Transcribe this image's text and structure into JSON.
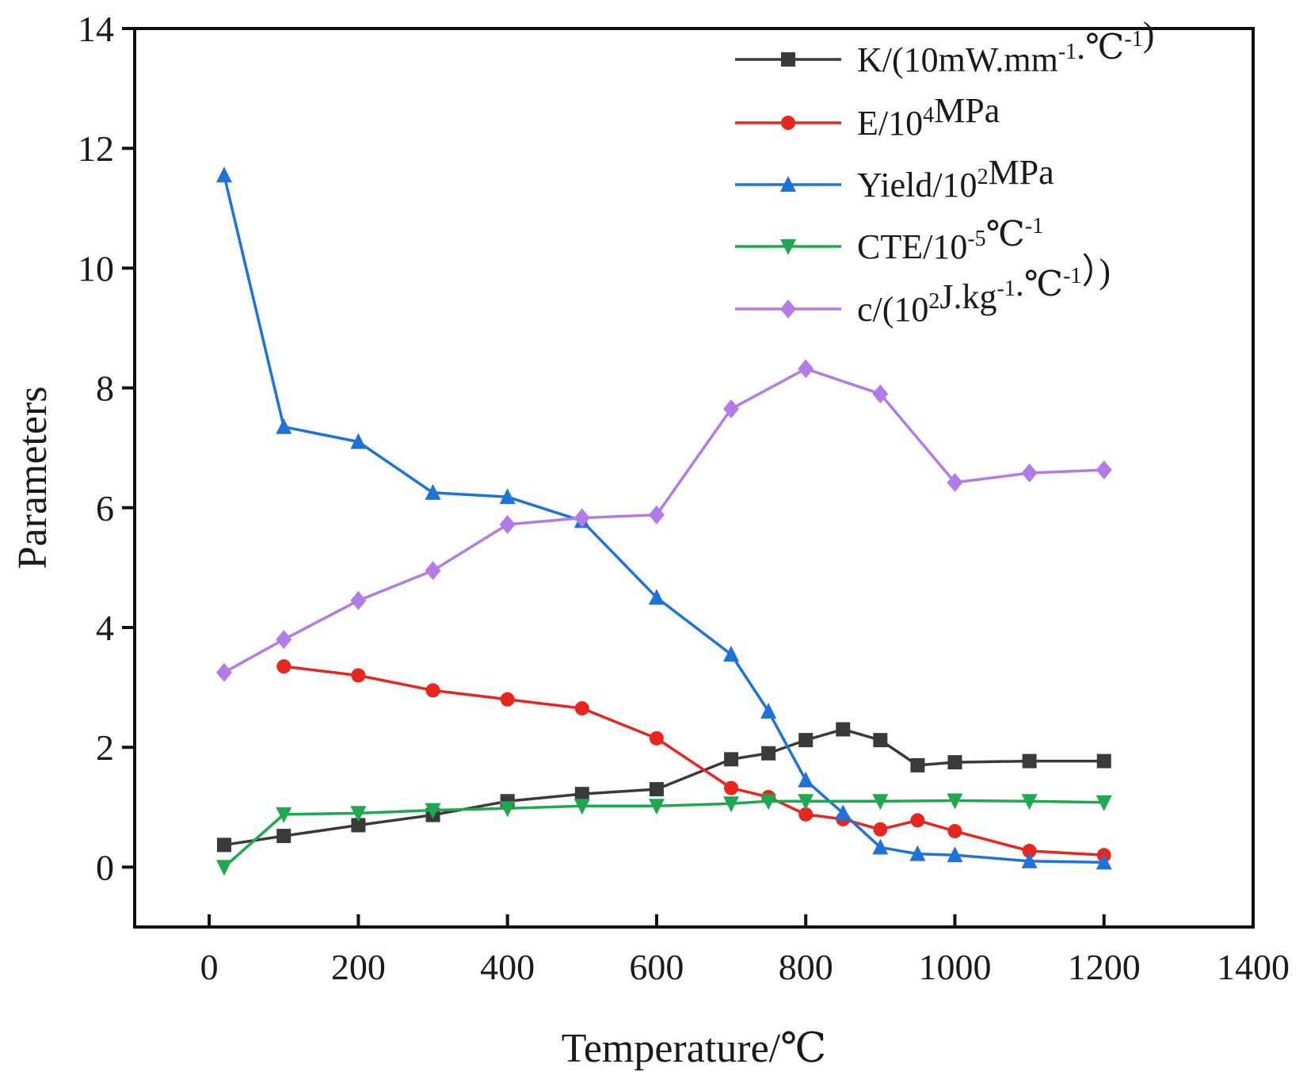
{
  "chart_data": {
    "type": "line",
    "xlabel": "Temperature/℃",
    "ylabel": "Parameters",
    "xlim": [
      -100,
      1400
    ],
    "ylim": [
      -1,
      14
    ],
    "x_ticks": [
      0,
      200,
      400,
      600,
      800,
      1000,
      1200,
      1400
    ],
    "y_ticks": [
      0,
      2,
      4,
      6,
      8,
      10,
      12,
      14
    ],
    "grid": false,
    "legend_position": "top-right",
    "series": [
      {
        "name": "K/(10mW.mm-1.℃-1)",
        "color": "#3a3a3a",
        "marker": "square",
        "x": [
          20,
          100,
          200,
          300,
          400,
          500,
          600,
          700,
          750,
          800,
          850,
          900,
          950,
          1000,
          1100,
          1200
        ],
        "y": [
          0.37,
          0.52,
          0.7,
          0.87,
          1.1,
          1.22,
          1.3,
          1.8,
          1.9,
          2.12,
          2.3,
          2.12,
          1.7,
          1.75,
          1.77,
          1.77
        ]
      },
      {
        "name": "E/104MPa",
        "color": "#e8261f",
        "marker": "circle",
        "x": [
          100,
          200,
          300,
          400,
          500,
          600,
          700,
          750,
          800,
          850,
          900,
          950,
          1000,
          1100,
          1200
        ],
        "y": [
          3.35,
          3.2,
          2.95,
          2.8,
          2.65,
          2.15,
          1.32,
          1.17,
          0.88,
          0.8,
          0.63,
          0.78,
          0.6,
          0.27,
          0.2
        ]
      },
      {
        "name": "Yield/102MPa",
        "color": "#1e73d8",
        "marker": "triangle-up",
        "x": [
          20,
          100,
          200,
          300,
          400,
          500,
          600,
          700,
          750,
          800,
          850,
          900,
          950,
          1000,
          1100,
          1200
        ],
        "y": [
          11.55,
          7.35,
          7.1,
          6.25,
          6.18,
          5.78,
          4.5,
          3.55,
          2.6,
          1.45,
          0.9,
          0.33,
          0.22,
          0.2,
          0.1,
          0.08
        ]
      },
      {
        "name": "CTE/10-5℃-1",
        "color": "#1fa84f",
        "marker": "triangle-down",
        "x": [
          20,
          100,
          200,
          300,
          400,
          500,
          600,
          700,
          750,
          800,
          900,
          1000,
          1100,
          1200
        ],
        "y": [
          0.0,
          0.88,
          0.9,
          0.95,
          0.98,
          1.02,
          1.02,
          1.06,
          1.1,
          1.1,
          1.1,
          1.11,
          1.1,
          1.08
        ]
      },
      {
        "name": "c/(102J.kg-1.℃-1）)",
        "color": "#b27be8",
        "marker": "diamond",
        "x": [
          20,
          100,
          200,
          300,
          400,
          500,
          600,
          700,
          800,
          900,
          1000,
          1100,
          1200
        ],
        "y": [
          3.25,
          3.8,
          4.45,
          4.95,
          5.72,
          5.83,
          5.88,
          7.65,
          8.32,
          7.9,
          6.42,
          6.58,
          6.63
        ]
      }
    ],
    "legend_labels": [
      {
        "base": "K/(10mW.mm",
        "sup1": "-1",
        "mid": ".℃",
        "sup2": "-1",
        "tail": ")"
      },
      {
        "base": "E/10",
        "sup1": "4",
        "mid": "MPa",
        "sup2": "",
        "tail": ""
      },
      {
        "base": "Yield/10",
        "sup1": "2",
        "mid": "MPa",
        "sup2": "",
        "tail": ""
      },
      {
        "base": "CTE/10",
        "sup1": "-5",
        "mid": "℃",
        "sup2": "-1",
        "tail": ""
      },
      {
        "base": "c/(10",
        "sup1": "2",
        "mid": "J.kg",
        "sup2": "-1",
        "tail": ".℃",
        "sup3": "-1",
        "tail2": "）)"
      }
    ]
  }
}
